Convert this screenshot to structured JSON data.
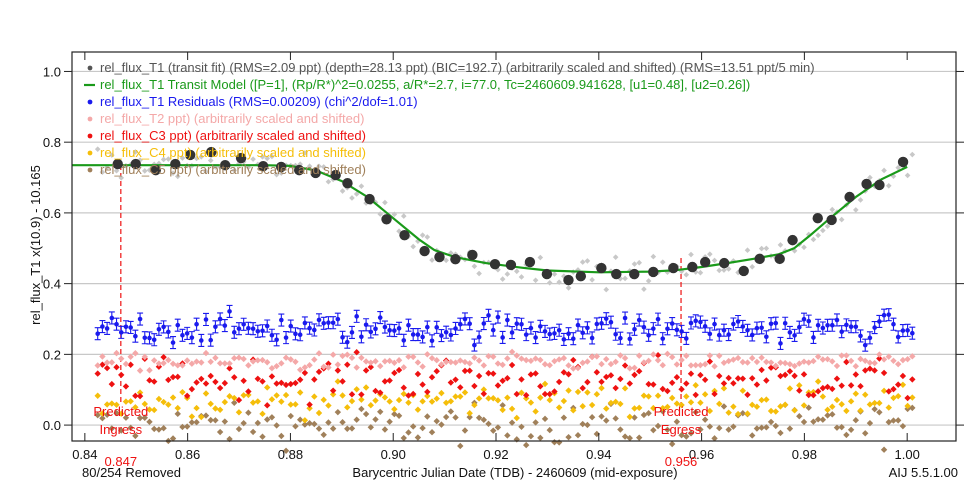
{
  "chart_data": {
    "type": "scatter",
    "xlabel": "Barycentric Julian Date (TDB) - 2460609 (mid-exposure)",
    "ylabel": "rel_flux_T1 x(10.9) - 10.165",
    "xlim": [
      0.8375,
      1.0095
    ],
    "ylim": [
      -0.045,
      1.055
    ],
    "grid": true,
    "xticks": [
      "0.84",
      "0.86",
      "0.88",
      "0.90",
      "0.92",
      "0.94",
      "0.96",
      "0.98",
      "1.00"
    ],
    "xtick_values": [
      0.84,
      0.86,
      0.88,
      0.9,
      0.92,
      0.94,
      0.96,
      0.98,
      1.0
    ],
    "yticks": [
      "0.0",
      "0.2",
      "0.4",
      "0.6",
      "0.8",
      "1.0"
    ],
    "ytick_values": [
      0.0,
      0.2,
      0.4,
      0.6,
      0.8,
      1.0
    ],
    "legend_placement": "top-left",
    "legend": [
      {
        "text": "rel_flux_T1 (transit fit) (RMS=2.09 ppt) (depth=28.13 ppt) (BIC=192.7) (arbitrarily scaled and shifted) (RMS=13.51 ppt/5 min)",
        "color": "#555555",
        "symbol": "dot"
      },
      {
        "text": "rel_flux_T1 Transit Model ([P=1], (Rp/R*)^2=0.0255, a/R*=2.7, i=77.0, Tc=2460609.941628, [u1=0.48], [u2=0.26])",
        "color": "#1a9a1a",
        "symbol": "line"
      },
      {
        "text": "rel_flux_T1 Residuals (RMS=0.00209) (chi^2/dof=1.01)",
        "color": "#1a1aee",
        "symbol": "dot"
      },
      {
        "text": "rel_flux_T2 ppt) (arbitrarily scaled and shifted)",
        "color": "#f4a8a8",
        "symbol": "dot"
      },
      {
        "text": "rel_flux_C3 ppt) (arbitrarily scaled and shifted)",
        "color": "#ee1111",
        "symbol": "dot"
      },
      {
        "text": "rel_flux_C4 ppt) (arbitrarily scaled and shifted)",
        "color": "#f5be0a",
        "symbol": "dot"
      },
      {
        "text": "rel_flux_C5 ppt) (arbitrarily scaled and shifted)",
        "color": "#a0805a",
        "symbol": "dot"
      }
    ],
    "binned_t1": {
      "color": "#333333",
      "x": [
        0.8464,
        0.8499,
        0.8538,
        0.8576,
        0.8605,
        0.8646,
        0.8673,
        0.8704,
        0.8747,
        0.8782,
        0.8817,
        0.8849,
        0.8888,
        0.8911,
        0.8954,
        0.8987,
        0.9022,
        0.9061,
        0.909,
        0.9121,
        0.9154,
        0.9198,
        0.9229,
        0.9266,
        0.9299,
        0.9341,
        0.9365,
        0.9405,
        0.9434,
        0.9469,
        0.9506,
        0.9545,
        0.9582,
        0.9607,
        0.9644,
        0.9682,
        0.9713,
        0.9752,
        0.9777,
        0.9826,
        0.9853,
        0.9888,
        0.9921,
        0.9946,
        0.9992
      ],
      "y": [
        0.738,
        0.738,
        0.721,
        0.738,
        0.764,
        0.772,
        0.735,
        0.755,
        0.732,
        0.73,
        0.721,
        0.713,
        0.707,
        0.684,
        0.639,
        0.582,
        0.537,
        0.492,
        0.475,
        0.469,
        0.481,
        0.455,
        0.453,
        0.461,
        0.427,
        0.41,
        0.421,
        0.444,
        0.427,
        0.427,
        0.433,
        0.444,
        0.447,
        0.461,
        0.458,
        0.436,
        0.47,
        0.47,
        0.523,
        0.585,
        0.58,
        0.645,
        0.682,
        0.679,
        0.744
      ]
    },
    "model": {
      "color": "#1a9a1a",
      "x": [
        0.8375,
        0.875,
        0.88,
        0.885,
        0.89,
        0.895,
        0.9,
        0.905,
        0.908,
        0.912,
        0.918,
        0.925,
        0.93,
        0.94,
        0.95,
        0.955,
        0.96,
        0.965,
        0.97,
        0.975,
        0.978,
        0.981,
        0.985,
        0.99,
        0.995,
        1.0
      ],
      "y": [
        0.735,
        0.735,
        0.733,
        0.72,
        0.69,
        0.645,
        0.585,
        0.525,
        0.495,
        0.475,
        0.458,
        0.445,
        0.437,
        0.432,
        0.434,
        0.438,
        0.447,
        0.458,
        0.47,
        0.483,
        0.5,
        0.535,
        0.585,
        0.645,
        0.695,
        0.73
      ]
    },
    "unbinned": {
      "x_start": 0.8425,
      "x_end": 1.001,
      "n_points": 174
    },
    "raw_t1": {
      "color": "#c8c8c8",
      "scatter": 0.02
    },
    "series": [
      {
        "name": "rel_flux_T1 Residuals",
        "color": "#1a1aee",
        "offset": 0.272,
        "scatter": 0.02,
        "errorbar": 0.017
      },
      {
        "name": "rel_flux_T2",
        "color": "#f4a8a8",
        "offset": 0.178,
        "scatter": 0.012
      },
      {
        "name": "rel_flux_C3",
        "color": "#ee1111",
        "offset": 0.13,
        "scatter": 0.03
      },
      {
        "name": "rel_flux_C4",
        "color": "#f5be0a",
        "offset": 0.07,
        "scatter": 0.022
      },
      {
        "name": "rel_flux_C5",
        "color": "#a0805a",
        "offset": 0.0,
        "scatter": 0.028
      }
    ],
    "annotations": {
      "ingress": {
        "x": 0.847,
        "label_line1": "Predicted",
        "label_line2": "Ingress",
        "value": "0.847"
      },
      "egress": {
        "x": 0.956,
        "label_line1": "Predicted",
        "label_line2": "Egress",
        "value": "0.956"
      },
      "color": "#ee1111"
    },
    "removed_note": "80/254 Removed",
    "version": "AIJ 5.5.1.00"
  }
}
